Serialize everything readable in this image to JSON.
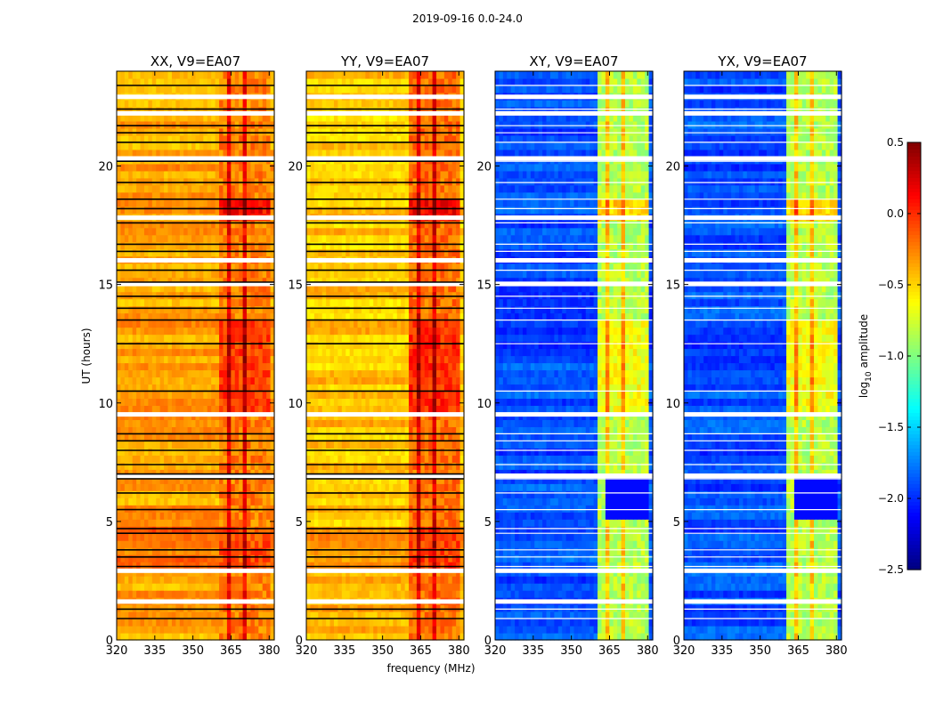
{
  "suptitle": "2019-09-16 0.0-24.0",
  "chart_data": {
    "type": "heatmap",
    "title": "2019-09-16 0.0-24.0",
    "xlabel": "frequency (MHz)",
    "ylabel": "UT (hours)",
    "xlim": [
      320,
      382
    ],
    "ylim": [
      0,
      24
    ],
    "xticks": [
      "320",
      "335",
      "350",
      "365",
      "380"
    ],
    "xtick_values": [
      320,
      335,
      350,
      365,
      380
    ],
    "yticks": [
      "0",
      "5",
      "10",
      "15",
      "20"
    ],
    "ytick_values": [
      0,
      5,
      10,
      15,
      20
    ],
    "colorbar": {
      "label": "log10 amplitude",
      "label_base": "log",
      "label_sub": "10",
      "label_rest": " amplitude",
      "range": [
        -2.5,
        0.5
      ],
      "ticks": [
        "0.5",
        "0.0",
        "−0.5",
        "−1.0",
        "−1.5",
        "−2.0",
        "−2.5"
      ],
      "tick_values": [
        0.5,
        0.0,
        -0.5,
        -1.0,
        -1.5,
        -2.0,
        -2.5
      ],
      "colormap": "jet"
    },
    "panels": [
      {
        "title": "XX, V9=EA07",
        "base_level": -0.35,
        "band_level": 0.0,
        "kind": "parallel"
      },
      {
        "title": "YY, V9=EA07",
        "base_level": -0.45,
        "band_level": 0.05,
        "kind": "parallel"
      },
      {
        "title": "XY, V9=EA07",
        "base_level": -1.9,
        "band_level": -0.6,
        "kind": "cross"
      },
      {
        "title": "YX, V9=EA07",
        "base_level": -1.9,
        "band_level": -0.6,
        "kind": "cross"
      }
    ],
    "band_freqs_mhz": [
      362,
      366,
      369,
      372.5,
      375.5,
      379
    ],
    "black_flag_hours": [
      0.9,
      1.3,
      3.1,
      3.5,
      3.8,
      4.5,
      4.7,
      5.5,
      6.2,
      6.8,
      7.0,
      7.4,
      8.0,
      8.4,
      8.7,
      10.5,
      12.5,
      13.5,
      14.0,
      14.5,
      15.1,
      15.6,
      16.4,
      16.7,
      17.6,
      18.2,
      18.6,
      19.3,
      20.2,
      21.0,
      21.4,
      21.7,
      22.4,
      23.4
    ],
    "white_flag_hours": [
      9.5,
      15.0,
      16.0,
      17.8,
      20.3,
      22.2,
      22.9,
      2.9,
      6.9,
      1.6
    ]
  }
}
